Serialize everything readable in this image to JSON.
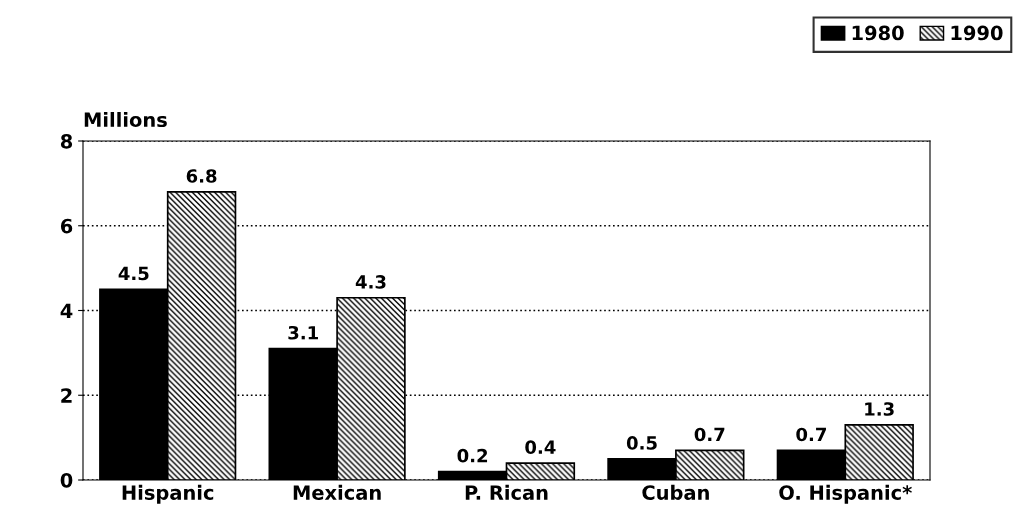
{
  "chart_data": {
    "type": "bar",
    "ylabel": "Millions",
    "categories": [
      "Hispanic",
      "Mexican",
      "P. Rican",
      "Cuban",
      "O. Hispanic*"
    ],
    "series": [
      {
        "name": "1980",
        "color": "#000000",
        "values": [
          4.5,
          3.1,
          0.2,
          0.5,
          0.7
        ]
      },
      {
        "name": "1990",
        "color": "#000000",
        "values": [
          6.8,
          4.3,
          0.4,
          0.7,
          1.3
        ]
      }
    ],
    "ylim": [
      0,
      8
    ],
    "yticks": [
      0,
      2,
      4,
      6,
      8
    ],
    "grid": "y",
    "legend": "top right",
    "data_labels": true
  }
}
